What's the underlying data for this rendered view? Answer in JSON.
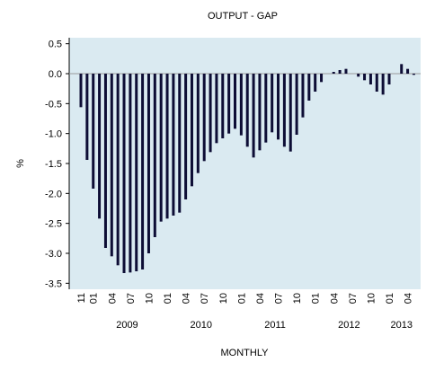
{
  "chart_data": {
    "type": "bar",
    "title": "OUTPUT - GAP",
    "xlabel": "MONTHLY",
    "ylabel": "%",
    "ylim": [
      -3.6,
      0.6
    ],
    "y_ticks": [
      0.5,
      0.0,
      -0.5,
      -1.0,
      -1.5,
      -2.0,
      -2.5,
      -3.0,
      -3.5
    ],
    "y_tick_labels": [
      "0.5",
      "0.0",
      "-0.5",
      "-1.0",
      "-1.5",
      "-2.0",
      "-2.5",
      "-3.0",
      "-3.5"
    ],
    "grid": false,
    "month_tick_labels": [
      {
        "month": "2008-11",
        "label": "11"
      },
      {
        "month": "2009-01",
        "label": "01"
      },
      {
        "month": "2009-04",
        "label": "04"
      },
      {
        "month": "2009-07",
        "label": "07"
      },
      {
        "month": "2009-10",
        "label": "10"
      },
      {
        "month": "2010-01",
        "label": "01"
      },
      {
        "month": "2010-04",
        "label": "04"
      },
      {
        "month": "2010-07",
        "label": "07"
      },
      {
        "month": "2010-10",
        "label": "10"
      },
      {
        "month": "2011-01",
        "label": "01"
      },
      {
        "month": "2011-04",
        "label": "04"
      },
      {
        "month": "2011-07",
        "label": "07"
      },
      {
        "month": "2011-10",
        "label": "10"
      },
      {
        "month": "2012-01",
        "label": "01"
      },
      {
        "month": "2012-04",
        "label": "04"
      },
      {
        "month": "2012-07",
        "label": "07"
      },
      {
        "month": "2012-10",
        "label": "10"
      },
      {
        "month": "2013-01",
        "label": "01"
      },
      {
        "month": "2013-04",
        "label": "04"
      }
    ],
    "year_labels": [
      {
        "label": "2009",
        "from": "2009-01",
        "to": "2009-12"
      },
      {
        "label": "2010",
        "from": "2010-01",
        "to": "2010-12"
      },
      {
        "label": "2011",
        "from": "2011-01",
        "to": "2011-12"
      },
      {
        "label": "2012",
        "from": "2012-01",
        "to": "2012-12"
      },
      {
        "label": "2013",
        "from": "2013-01",
        "to": "2013-05"
      }
    ],
    "x": [
      "2008-11",
      "2008-12",
      "2009-01",
      "2009-02",
      "2009-03",
      "2009-04",
      "2009-05",
      "2009-06",
      "2009-07",
      "2009-08",
      "2009-09",
      "2009-10",
      "2009-11",
      "2009-12",
      "2010-01",
      "2010-02",
      "2010-03",
      "2010-04",
      "2010-05",
      "2010-06",
      "2010-07",
      "2010-08",
      "2010-09",
      "2010-10",
      "2010-11",
      "2010-12",
      "2011-01",
      "2011-02",
      "2011-03",
      "2011-04",
      "2011-05",
      "2011-06",
      "2011-07",
      "2011-08",
      "2011-09",
      "2011-10",
      "2011-11",
      "2011-12",
      "2012-01",
      "2012-02",
      "2012-03",
      "2012-04",
      "2012-05",
      "2012-06",
      "2012-07",
      "2012-08",
      "2012-09",
      "2012-10",
      "2012-11",
      "2012-12",
      "2013-01",
      "2013-02",
      "2013-03",
      "2013-04",
      "2013-05"
    ],
    "series": [
      {
        "color": "#0d0d35",
        "values": [
          -0.56,
          -1.44,
          -1.92,
          -2.42,
          -2.91,
          -3.05,
          -3.2,
          -3.33,
          -3.32,
          -3.3,
          -3.27,
          -3.0,
          -2.73,
          -2.47,
          -2.42,
          -2.37,
          -2.32,
          -2.1,
          -1.88,
          -1.66,
          -1.46,
          -1.31,
          -1.16,
          -1.08,
          -1.0,
          -0.92,
          -1.03,
          -1.22,
          -1.4,
          -1.28,
          -1.15,
          -0.98,
          -1.1,
          -1.22,
          -1.3,
          -1.02,
          -0.73,
          -0.45,
          -0.3,
          -0.14,
          0.0,
          0.03,
          0.06,
          0.08,
          0.0,
          -0.05,
          -0.11,
          -0.18,
          -0.3,
          -0.35,
          -0.18,
          0.0,
          0.16,
          0.08,
          -0.02
        ]
      }
    ]
  },
  "style": {
    "plot_background": "#daeaf1",
    "bar_color": "#0d0d35",
    "zero_line_color": "#9a9a9a"
  }
}
